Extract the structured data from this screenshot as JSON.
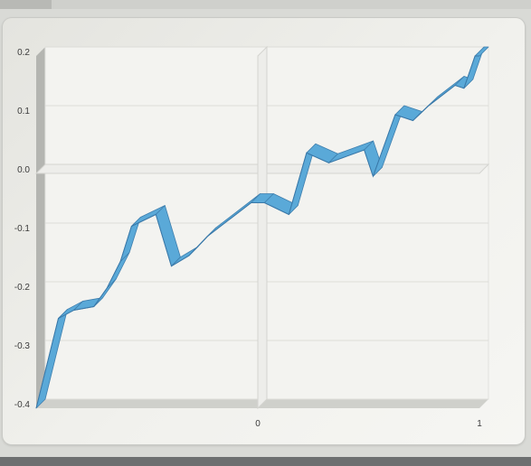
{
  "chart_data": {
    "type": "line",
    "style": "3d-ribbon",
    "title": "",
    "xlabel": "",
    "ylabel": "",
    "xlim": [
      -1,
      1
    ],
    "ylim": [
      -0.4,
      0.2
    ],
    "grid": true,
    "legend": "none",
    "series_color": "#5aa9d8",
    "y_ticks": [
      {
        "value": 0.2,
        "label": "0.2"
      },
      {
        "value": 0.1,
        "label": "0.1"
      },
      {
        "value": 0.0,
        "label": "0.0"
      },
      {
        "value": -0.1,
        "label": "-0.1"
      },
      {
        "value": -0.2,
        "label": "-0.2"
      },
      {
        "value": -0.3,
        "label": "-0.3"
      },
      {
        "value": -0.4,
        "label": "-0.4"
      }
    ],
    "x_ticks": [
      {
        "value": 0,
        "label": "0"
      },
      {
        "value": 1,
        "label": "1"
      }
    ],
    "series": [
      {
        "x": [
          -1.0,
          -0.9,
          -0.83,
          -0.74,
          -0.68,
          -0.62,
          -0.57,
          -0.46,
          -0.39,
          -0.31,
          -0.23,
          -0.03,
          0.03,
          0.14,
          0.22,
          0.32,
          0.48,
          0.52,
          0.62,
          0.7,
          0.77,
          0.89,
          0.93,
          0.98,
          1.0
        ],
        "y": [
          -0.4,
          -0.247,
          -0.233,
          -0.227,
          -0.195,
          -0.15,
          -0.09,
          -0.07,
          -0.158,
          -0.14,
          -0.108,
          -0.05,
          -0.05,
          -0.07,
          0.035,
          0.018,
          0.04,
          -0.005,
          0.1,
          0.09,
          0.115,
          0.15,
          0.145,
          0.2,
          0.2
        ]
      }
    ]
  }
}
